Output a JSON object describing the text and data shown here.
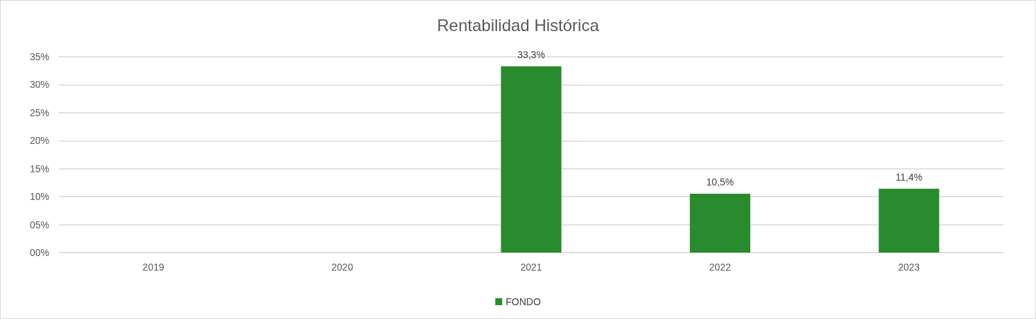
{
  "chart_data": {
    "type": "bar",
    "title": "Rentabilidad Histórica",
    "categories": [
      "2019",
      "2020",
      "2021",
      "2022",
      "2023"
    ],
    "series": [
      {
        "name": "FONDO",
        "color": "#2a8a2e",
        "values": [
          null,
          null,
          33.3,
          10.5,
          11.4
        ],
        "value_labels": [
          null,
          null,
          "33,3%",
          "10,5%",
          "11,4%"
        ]
      }
    ],
    "ylim": [
      0,
      35
    ],
    "yticks": [
      {
        "value": 0,
        "label": "00%"
      },
      {
        "value": 5,
        "label": "05%"
      },
      {
        "value": 10,
        "label": "10%"
      },
      {
        "value": 15,
        "label": "15%"
      },
      {
        "value": 20,
        "label": "20%"
      },
      {
        "value": 25,
        "label": "25%"
      },
      {
        "value": 30,
        "label": "30%"
      },
      {
        "value": 35,
        "label": "35%"
      }
    ],
    "grid": "y",
    "legend": "bottom"
  }
}
